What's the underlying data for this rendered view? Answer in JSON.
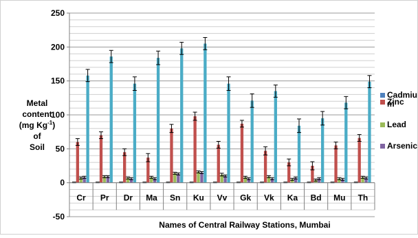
{
  "chart_data": {
    "type": "bar",
    "title": "",
    "xlabel": "Names of Central Railway Stations, Mumbai",
    "ylabel": {
      "line1": "Metal",
      "line2_prefix": "content",
      "line3_prefix": "(mg Kg",
      "line3_sup": "-1",
      "line3_suffix": ")",
      "line4": "of",
      "line5": "Soil"
    },
    "categories": [
      "Cr",
      "Pr",
      "Dr",
      "Ma",
      "Sn",
      "Ku",
      "Vv",
      "Gk",
      "Vk",
      "Ka",
      "Bd",
      "Mu",
      "Th"
    ],
    "ylim": [
      -50,
      250
    ],
    "yticks": [
      -50,
      0,
      50,
      100,
      150,
      200,
      250
    ],
    "grid": true,
    "error_bars": true,
    "legend_position": "right",
    "series": [
      {
        "name": "Cadmium",
        "legend_label": [
          "Cadmiu",
          "m"
        ],
        "color": "#4F81BD",
        "values": [
          0.5,
          0.5,
          0.5,
          0.5,
          0.5,
          0.5,
          0.5,
          0.5,
          0.5,
          0.5,
          0.5,
          0.5,
          0.5
        ],
        "errors": [
          0.5,
          0.5,
          0.5,
          0.5,
          0.5,
          0.5,
          0.5,
          0.5,
          0.5,
          0.5,
          0.5,
          0.5,
          0.5
        ]
      },
      {
        "name": "Zinc",
        "legend_label": [
          "Zinc"
        ],
        "color": "#C0504D",
        "values": [
          60,
          70,
          45,
          37,
          80,
          98,
          56,
          87,
          47,
          30,
          25,
          55,
          66
        ],
        "errors": [
          5,
          5,
          5,
          6,
          6,
          6,
          5,
          5,
          6,
          5,
          6,
          5,
          5
        ]
      },
      {
        "name": "Lead",
        "legend_label": [
          "Lead"
        ],
        "color": "#9BBB59",
        "values": [
          7,
          9,
          7,
          8,
          14,
          16,
          12,
          8,
          9,
          5,
          4,
          6,
          8
        ],
        "errors": [
          1.5,
          1.5,
          1.5,
          1.5,
          1.5,
          1.5,
          2,
          1.5,
          1.5,
          1.5,
          1.5,
          1.5,
          1.5
        ]
      },
      {
        "name": "Arsenic",
        "legend_label": [
          "Arsenic"
        ],
        "color": "#8064A2",
        "values": [
          8,
          9,
          6,
          6,
          13,
          15,
          10,
          6,
          6,
          7,
          6,
          5,
          7
        ],
        "errors": [
          1.5,
          1.5,
          1.5,
          1.5,
          1.5,
          1.5,
          1.5,
          1.5,
          1.5,
          1.5,
          1.5,
          1.5,
          1.5
        ]
      },
      {
        "name": "",
        "legend_label": [],
        "color": "#4BACC6",
        "values": [
          158,
          186,
          146,
          184,
          198,
          205,
          146,
          121,
          135,
          84,
          95,
          118,
          149
        ],
        "errors": [
          9,
          9,
          10,
          10,
          9,
          9,
          10,
          10,
          9,
          10,
          10,
          9,
          9
        ]
      }
    ]
  }
}
